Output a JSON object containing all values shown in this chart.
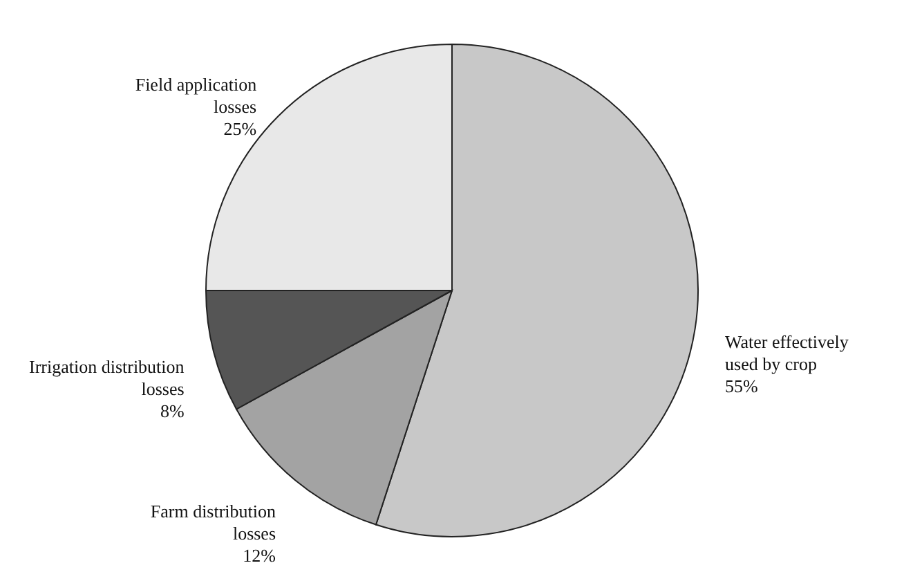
{
  "chart_data": {
    "type": "pie",
    "categories": [
      "Water effectively used by crop",
      "Farm distribution losses",
      "Irrigation distribution losses",
      "Field application losses"
    ],
    "values": [
      55,
      12,
      8,
      25
    ],
    "value_labels": [
      "55%",
      "12%",
      "8%",
      "25%"
    ],
    "colors": [
      "#c8c8c8",
      "#a3a3a3",
      "#555555",
      "#e8e8e8"
    ],
    "legend": false
  }
}
